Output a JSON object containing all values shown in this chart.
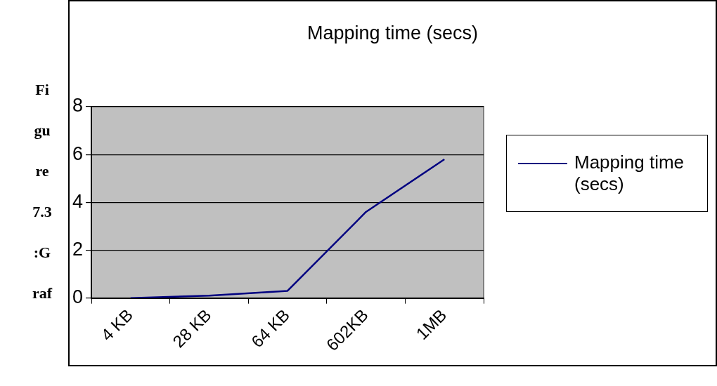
{
  "chart_data": {
    "type": "line",
    "title": "Mapping time (secs)",
    "categories": [
      "4 KB",
      "28 KB",
      "64 KB",
      "602KB",
      "1MB"
    ],
    "series": [
      {
        "name": "Mapping time (secs)",
        "color": "#000080",
        "values": [
          0,
          0.1,
          0.3,
          3.6,
          5.8
        ]
      }
    ],
    "ylim": [
      0,
      8
    ],
    "yticks": [
      0,
      2,
      4,
      6,
      8
    ],
    "grid": "y",
    "legend": "right",
    "marker": "none",
    "line_style": "solid",
    "annotations": [
      "Fi",
      "gu",
      "re",
      "7.3",
      ":G",
      "raf"
    ]
  }
}
